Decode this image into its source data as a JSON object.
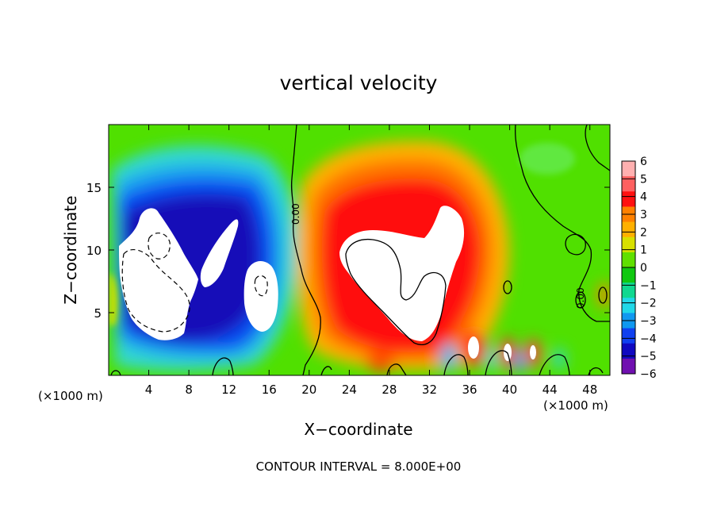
{
  "chart_data": {
    "type": "heatmap",
    "title": "vertical velocity",
    "xlabel": "X−coordinate",
    "ylabel": "Z−coordinate",
    "x_unit_label": "(×1000 m)",
    "y_unit_label": "(×1000 m)",
    "footer": "CONTOUR INTERVAL = 8.000E+00",
    "xlim": [
      0,
      50
    ],
    "ylim": [
      0,
      20
    ],
    "x_ticks": [
      4,
      8,
      12,
      16,
      20,
      24,
      28,
      32,
      36,
      40,
      44,
      48
    ],
    "y_ticks": [
      5,
      10,
      15
    ],
    "x_tick_labels": [
      "4",
      "8",
      "12",
      "16",
      "20",
      "24",
      "28",
      "32",
      "36",
      "40",
      "44",
      "48"
    ],
    "y_tick_labels": [
      "5",
      "10",
      "15"
    ],
    "colorbar": {
      "levels": [
        6,
        5,
        4,
        3,
        2,
        1,
        0,
        -1,
        -2,
        -3,
        -4,
        -5,
        -6
      ],
      "level_labels": [
        "6",
        "5",
        "4",
        "3",
        "2",
        "1",
        "0",
        "−1",
        "−2",
        "−3",
        "−4",
        "−5",
        "−6"
      ],
      "colors": [
        "#ffb0b0",
        "#ff6060",
        "#ff1010",
        "#ff8000",
        "#ffb000",
        "#d8e000",
        "#60e000",
        "#10c810",
        "#10d890",
        "#20d8e8",
        "#1098f0",
        "#1040f0",
        "#1008c0",
        "#7010b0"
      ]
    },
    "contour_labels": [
      "0.00",
      "0.00"
    ],
    "features": [
      {
        "kind": "downdraft",
        "x_center": 6,
        "z_center": 8,
        "min_value": -6
      },
      {
        "kind": "downdraft",
        "x_center": 14.5,
        "z_center": 6.5,
        "min_value": -6
      },
      {
        "kind": "updraft",
        "x_center": 29,
        "z_center": 8.5,
        "max_value": 6
      }
    ]
  }
}
